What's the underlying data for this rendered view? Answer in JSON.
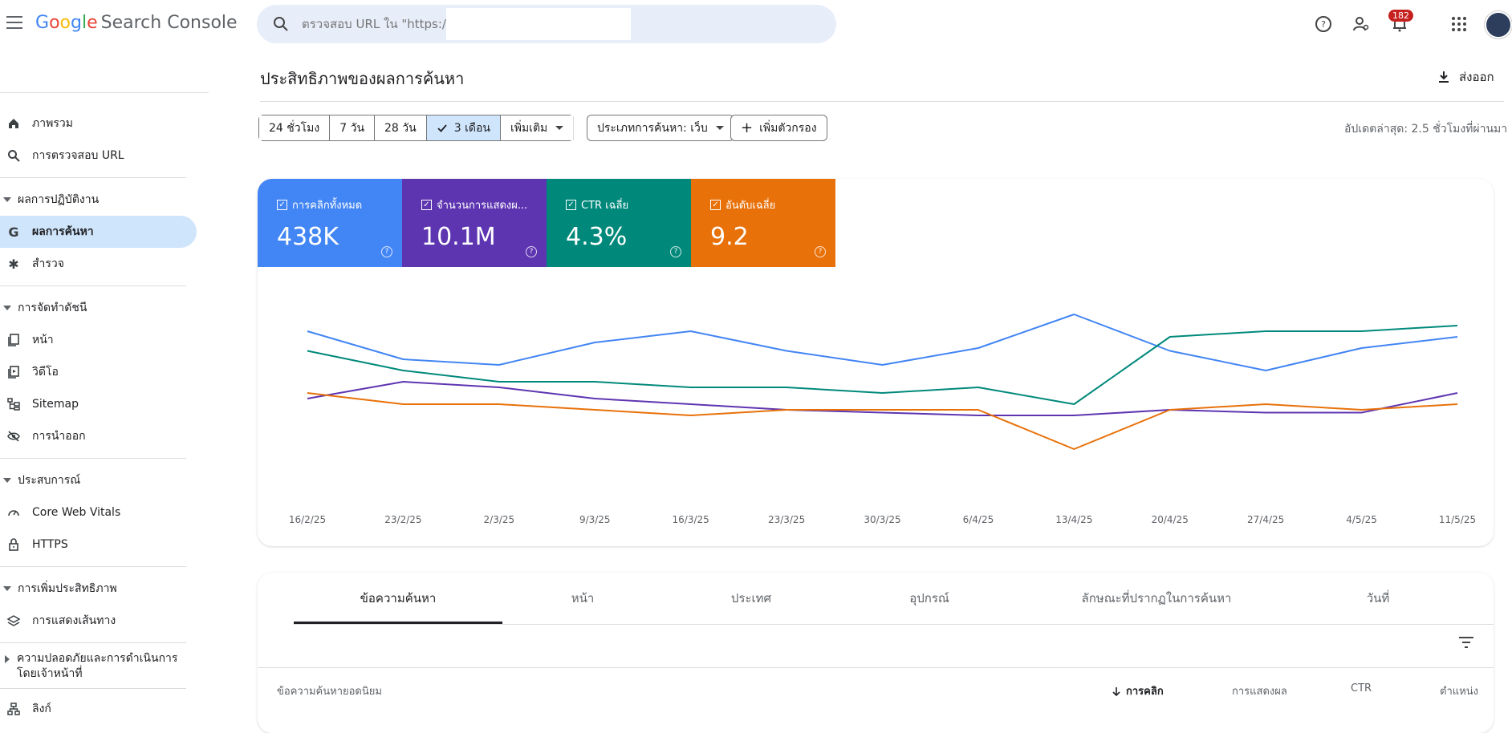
{
  "app": {
    "brand": "Google",
    "product": "Search Console"
  },
  "search": {
    "placeholder": "ตรวจสอบ URL ใน \"https://"
  },
  "notifications": {
    "count": "182"
  },
  "sidebar": {
    "items": [
      {
        "label": "ภาพรวม",
        "icon": "home-icon"
      },
      {
        "label": "การตรวจสอบ URL",
        "icon": "search-icon"
      }
    ],
    "sections": [
      {
        "title": "ผลการปฏิบัติงาน",
        "items": [
          {
            "label": "ผลการค้นหา",
            "icon": "google-g-icon",
            "active": true
          },
          {
            "label": "สำรวจ",
            "icon": "asterisk-icon"
          }
        ]
      },
      {
        "title": "การจัดทำดัชนี",
        "items": [
          {
            "label": "หน้า",
            "icon": "pages-icon"
          },
          {
            "label": "วิดีโอ",
            "icon": "video-page-icon"
          },
          {
            "label": "Sitemap",
            "icon": "sitemap-icon"
          },
          {
            "label": "การนำออก",
            "icon": "eye-off-icon"
          }
        ]
      },
      {
        "title": "ประสบการณ์",
        "items": [
          {
            "label": "Core Web Vitals",
            "icon": "speed-icon"
          },
          {
            "label": "HTTPS",
            "icon": "lock-icon"
          }
        ]
      },
      {
        "title": "การเพิ่มประสิทธิภาพ",
        "items": [
          {
            "label": "การแสดงเส้นทาง",
            "icon": "layers-icon"
          }
        ]
      },
      {
        "title": "ความปลอดภัยและการดำเนินการโดยเจ้าหน้าที่",
        "collapsed": true,
        "items": []
      }
    ],
    "links": {
      "label": "ลิงก์",
      "icon": "links-icon"
    }
  },
  "main": {
    "title": "ประสิทธิภาพของผลการค้นหา",
    "export_label": "ส่งออก",
    "date_chips": [
      "24 ชั่วโมง",
      "7 วัน",
      "28 วัน",
      "3 เดือน",
      "เพิ่มเติม"
    ],
    "selected_chip": "3 เดือน",
    "search_type_label": "ประเภทการค้นหา: เว็บ",
    "add_filter_label": "เพิ่มตัวกรอง",
    "updated_text": "อัปเดตล่าสุด: 2.5 ชั่วโมงที่ผ่านมา"
  },
  "metrics": [
    {
      "label": "การคลิกทั้งหมด",
      "value": "438K",
      "color": "#4285f4"
    },
    {
      "label": "จำนวนการแสดงผ...",
      "value": "10.1M",
      "color": "#5e35b1"
    },
    {
      "label": "CTR เฉลี่ย",
      "value": "4.3%",
      "color": "#00897b"
    },
    {
      "label": "อันดับเฉลี่ย",
      "value": "9.2",
      "color": "#e8710a"
    }
  ],
  "chart_data": {
    "type": "line",
    "x": [
      "16/2/25",
      "23/2/25",
      "2/3/25",
      "9/3/25",
      "16/3/25",
      "23/3/25",
      "30/3/25",
      "6/4/25",
      "13/4/25",
      "20/4/25",
      "27/4/25",
      "4/5/25",
      "11/5/25"
    ],
    "tick_labels": [
      "16/2/25",
      "23/2/25",
      "2/3/25",
      "9/3/25",
      "16/3/25",
      "23/3/25",
      "30/3/25",
      "6/4/25",
      "13/4/25",
      "20/4/25",
      "27/4/25",
      "4/5/25",
      "11/5/25"
    ],
    "series": [
      {
        "name": "การคลิกทั้งหมด",
        "color": "#4285f4",
        "values": [
          62,
          52,
          50,
          58,
          62,
          55,
          50,
          56,
          68,
          55,
          48,
          56,
          60
        ]
      },
      {
        "name": "จำนวนการแสดงผ...",
        "color": "#5e35b1",
        "values": [
          38,
          44,
          42,
          38,
          36,
          34,
          33,
          32,
          32,
          34,
          33,
          33,
          40
        ]
      },
      {
        "name": "CTR เฉลี่ย",
        "color": "#00897b",
        "values": [
          55,
          48,
          44,
          44,
          42,
          42,
          40,
          42,
          36,
          60,
          62,
          62,
          64
        ]
      },
      {
        "name": "อันดับเฉลี่ย",
        "color": "#e8710a",
        "values": [
          40,
          36,
          36,
          34,
          32,
          34,
          34,
          34,
          20,
          34,
          36,
          34,
          36
        ]
      }
    ],
    "grid": false,
    "legend": "none"
  },
  "tabs": [
    "ข้อความค้นหา",
    "หน้า",
    "ประเทศ",
    "อุปกรณ์",
    "ลักษณะที่ปรากฏในการค้นหา",
    "วันที่"
  ],
  "table": {
    "headers": [
      "ข้อความค้นหายอดนิยม",
      "การคลิก",
      "การแสดงผล",
      "CTR",
      "ตำแหน่ง"
    ]
  }
}
